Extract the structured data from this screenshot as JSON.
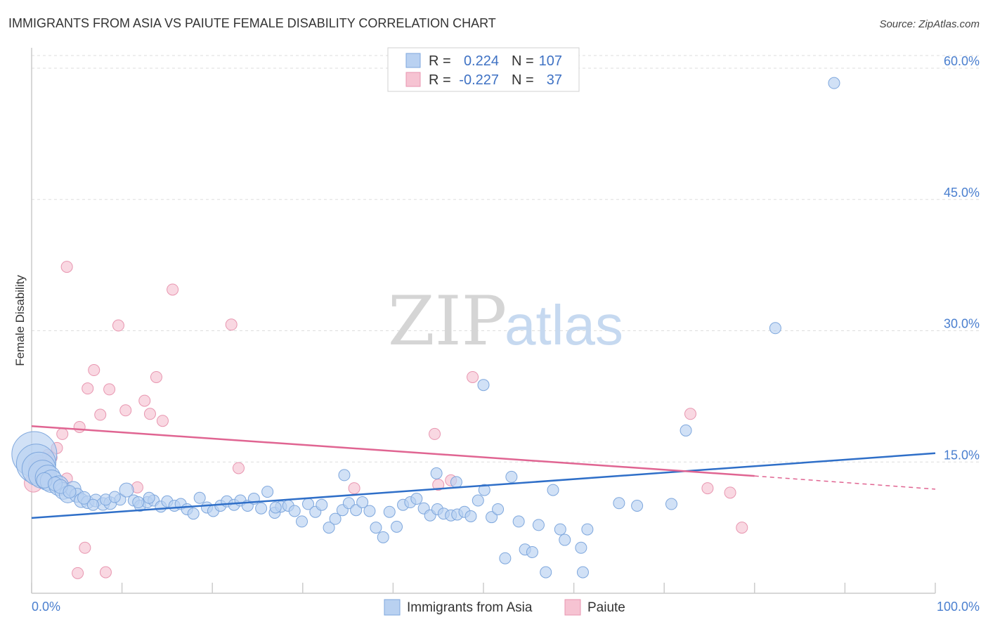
{
  "title": "IMMIGRANTS FROM ASIA VS PAIUTE FEMALE DISABILITY CORRELATION CHART",
  "source": "Source: ZipAtlas.com",
  "watermark": {
    "zip": "ZIP",
    "atlas": "atlas"
  },
  "colors": {
    "blue_fill": "#b9d1f1",
    "blue_stroke": "#7ea7dd",
    "blue_line": "#2f6fc8",
    "pink_fill": "#f6c3d2",
    "pink_stroke": "#e896b0",
    "pink_line": "#e06592",
    "tick_label": "#4a7fcf",
    "grid": "#dddddd"
  },
  "legend": {
    "rows": [
      {
        "r_label": "R =",
        "r_value": "0.224",
        "n_label": "N =",
        "n_value": "107"
      },
      {
        "r_label": "R =",
        "r_value": "-0.227",
        "n_label": "N =",
        "n_value": "37"
      }
    ]
  },
  "bottom_legend": [
    "Immigrants from Asia",
    "Paiute"
  ],
  "chart_data": {
    "type": "scatter",
    "title": "IMMIGRANTS FROM ASIA VS PAIUTE FEMALE DISABILITY CORRELATION CHART",
    "xlabel": "",
    "ylabel": "Female Disability",
    "xlim": [
      0,
      100
    ],
    "ylim": [
      0,
      62
    ],
    "x_tick_labels": [
      "0.0%",
      "100.0%"
    ],
    "y_ticks": [
      15,
      30,
      45,
      60
    ],
    "y_tick_labels": [
      "15.0%",
      "30.0%",
      "45.0%",
      "60.0%"
    ],
    "grid": true,
    "legend_position": "top-center",
    "series": [
      {
        "name": "Immigrants from Asia",
        "r": 0.224,
        "n": 107,
        "trend": {
          "x": [
            0,
            100
          ],
          "y": [
            8.6,
            16.0
          ]
        },
        "points": [
          [
            0.3,
            15.9,
            32
          ],
          [
            0.5,
            14.8,
            28
          ],
          [
            0.8,
            14.2,
            24
          ],
          [
            1.2,
            13.6,
            20
          ],
          [
            1.8,
            13.2,
            18
          ],
          [
            2.2,
            12.8,
            16
          ],
          [
            3.0,
            12.3,
            14
          ],
          [
            3.5,
            11.7,
            12
          ],
          [
            4.0,
            11.3,
            12
          ],
          [
            4.6,
            11.9,
            11
          ],
          [
            5.0,
            11.2,
            10
          ],
          [
            5.5,
            10.6,
            10
          ],
          [
            6.2,
            10.4,
            9
          ],
          [
            7.1,
            10.6,
            9
          ],
          [
            7.9,
            10.2,
            9
          ],
          [
            8.7,
            10.3,
            9
          ],
          [
            9.8,
            10.7,
            8
          ],
          [
            10.5,
            11.8,
            10
          ],
          [
            11.3,
            10.6,
            8
          ],
          [
            12.0,
            10.0,
            8
          ],
          [
            12.8,
            10.4,
            8
          ],
          [
            13.5,
            10.6,
            8
          ],
          [
            14.3,
            9.9,
            8
          ],
          [
            15.0,
            10.5,
            8
          ],
          [
            15.8,
            10.0,
            8
          ],
          [
            16.5,
            10.2,
            8
          ],
          [
            17.2,
            9.6,
            8
          ],
          [
            17.9,
            9.1,
            8
          ],
          [
            18.6,
            10.9,
            8
          ],
          [
            19.4,
            9.8,
            8
          ],
          [
            20.1,
            9.4,
            8
          ],
          [
            20.9,
            10.0,
            8
          ],
          [
            21.6,
            10.5,
            8
          ],
          [
            22.4,
            10.1,
            8
          ],
          [
            23.1,
            10.6,
            8
          ],
          [
            23.9,
            10.0,
            8
          ],
          [
            24.6,
            10.8,
            8
          ],
          [
            25.4,
            9.7,
            8
          ],
          [
            26.1,
            11.6,
            8
          ],
          [
            26.9,
            9.2,
            8
          ],
          [
            27.6,
            9.9,
            8
          ],
          [
            28.4,
            10.0,
            8
          ],
          [
            29.1,
            9.4,
            8
          ],
          [
            29.9,
            8.2,
            8
          ],
          [
            30.6,
            10.2,
            8
          ],
          [
            31.4,
            9.3,
            8
          ],
          [
            32.1,
            10.1,
            8
          ],
          [
            32.9,
            7.5,
            8
          ],
          [
            33.6,
            8.5,
            8
          ],
          [
            34.4,
            9.5,
            8
          ],
          [
            35.1,
            10.3,
            8
          ],
          [
            35.9,
            9.5,
            8
          ],
          [
            36.6,
            10.4,
            8
          ],
          [
            37.4,
            9.4,
            8
          ],
          [
            38.1,
            7.5,
            8
          ],
          [
            38.9,
            6.4,
            8
          ],
          [
            39.6,
            9.3,
            8
          ],
          [
            40.4,
            7.6,
            8
          ],
          [
            41.1,
            10.1,
            8
          ],
          [
            41.9,
            10.4,
            8
          ],
          [
            42.6,
            10.8,
            8
          ],
          [
            43.4,
            9.7,
            8
          ],
          [
            44.1,
            8.9,
            8
          ],
          [
            44.9,
            9.6,
            8
          ],
          [
            45.6,
            9.1,
            8
          ],
          [
            46.4,
            8.9,
            8
          ],
          [
            47.1,
            9.0,
            8
          ],
          [
            47.9,
            9.3,
            8
          ],
          [
            48.6,
            8.8,
            8
          ],
          [
            49.4,
            10.6,
            8
          ],
          [
            50.1,
            11.8,
            8
          ],
          [
            50.9,
            8.7,
            8
          ],
          [
            51.6,
            9.6,
            8
          ],
          [
            52.4,
            4.0,
            8
          ],
          [
            53.1,
            13.3,
            8
          ],
          [
            53.9,
            8.2,
            8
          ],
          [
            54.6,
            5.0,
            8
          ],
          [
            55.4,
            4.7,
            8
          ],
          [
            56.1,
            7.8,
            8
          ],
          [
            56.9,
            2.4,
            8
          ],
          [
            34.6,
            13.5,
            8
          ],
          [
            44.8,
            13.7,
            8
          ],
          [
            47.0,
            12.7,
            8
          ],
          [
            50.0,
            23.8,
            8
          ],
          [
            70.8,
            10.2,
            8
          ],
          [
            58.5,
            7.3,
            8
          ],
          [
            59.0,
            6.1,
            8
          ],
          [
            60.8,
            5.2,
            8
          ],
          [
            61.0,
            2.4,
            8
          ],
          [
            61.5,
            7.3,
            8
          ],
          [
            57.7,
            11.8,
            8
          ],
          [
            65.0,
            10.3,
            8
          ],
          [
            67.0,
            10.0,
            8
          ],
          [
            72.4,
            18.6,
            8
          ],
          [
            82.3,
            30.3,
            8
          ],
          [
            88.8,
            58.3,
            8
          ],
          [
            1.4,
            12.9,
            11
          ],
          [
            2.6,
            12.5,
            10
          ],
          [
            3.2,
            12.2,
            10
          ],
          [
            4.2,
            11.6,
            9
          ],
          [
            5.8,
            10.9,
            9
          ],
          [
            6.8,
            10.1,
            8
          ],
          [
            8.2,
            10.7,
            8
          ],
          [
            9.2,
            11.0,
            8
          ],
          [
            11.8,
            10.4,
            8
          ],
          [
            13.0,
            10.9,
            8
          ],
          [
            27.0,
            9.8,
            8
          ]
        ]
      },
      {
        "name": "Paiute",
        "r": -0.227,
        "n": 37,
        "trend": {
          "x": [
            0,
            80
          ],
          "y": [
            19.1,
            13.4
          ]
        },
        "trend_dashed": {
          "x": [
            80,
            100
          ],
          "y": [
            13.4,
            11.9
          ]
        },
        "points": [
          [
            0.2,
            12.6,
            13
          ],
          [
            0.5,
            14.6,
            11
          ],
          [
            0.8,
            15.0,
            10
          ],
          [
            1.2,
            14.0,
            9
          ],
          [
            1.8,
            15.8,
            8
          ],
          [
            2.2,
            15.5,
            8
          ],
          [
            2.8,
            16.6,
            8
          ],
          [
            3.4,
            18.2,
            8
          ],
          [
            3.9,
            13.1,
            8
          ],
          [
            3.9,
            37.3,
            8
          ],
          [
            5.3,
            19.0,
            8
          ],
          [
            5.9,
            5.2,
            8
          ],
          [
            5.1,
            2.3,
            8
          ],
          [
            6.2,
            23.4,
            8
          ],
          [
            6.9,
            25.5,
            8
          ],
          [
            7.6,
            20.4,
            8
          ],
          [
            8.2,
            2.4,
            8
          ],
          [
            8.6,
            23.3,
            8
          ],
          [
            9.6,
            30.6,
            8
          ],
          [
            10.4,
            20.9,
            8
          ],
          [
            11.7,
            12.1,
            8
          ],
          [
            12.5,
            22.0,
            8
          ],
          [
            13.1,
            20.5,
            8
          ],
          [
            13.8,
            24.7,
            8
          ],
          [
            14.5,
            19.7,
            8
          ],
          [
            15.6,
            34.7,
            8
          ],
          [
            22.1,
            30.7,
            8
          ],
          [
            22.9,
            14.3,
            8
          ],
          [
            44.6,
            18.2,
            8
          ],
          [
            45.0,
            12.4,
            8
          ],
          [
            46.4,
            12.9,
            8
          ],
          [
            48.8,
            24.7,
            8
          ],
          [
            35.7,
            12.0,
            8
          ],
          [
            72.9,
            20.5,
            8
          ],
          [
            74.8,
            12.0,
            8
          ],
          [
            77.3,
            11.5,
            8
          ],
          [
            78.6,
            7.5,
            8
          ]
        ]
      }
    ]
  }
}
